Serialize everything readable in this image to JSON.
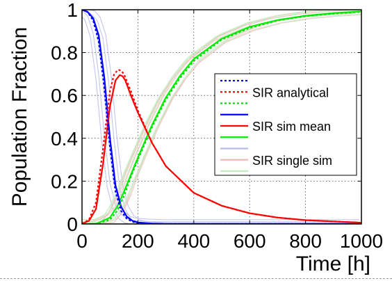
{
  "chart_data": {
    "type": "line",
    "xlabel": "Time [h]",
    "ylabel": "Population Fraction",
    "xlim": [
      0,
      1000
    ],
    "ylim": [
      0,
      1
    ],
    "xticks": [
      0,
      200,
      400,
      600,
      800,
      1000
    ],
    "xtick_labels": [
      "0",
      "200",
      "400",
      "600",
      "800",
      "1000"
    ],
    "yticks": [
      0,
      0.2,
      0.4,
      0.6,
      0.8,
      1
    ],
    "ytick_labels": [
      "0",
      "0.2",
      "0.4",
      "0.6",
      "0.8",
      "1"
    ],
    "grid": true,
    "legend_placement": "center-right",
    "legend_entries": [
      {
        "label": "",
        "color": "#0000ff",
        "style": "dotted"
      },
      {
        "label": "SIR analytical",
        "color": "#ff0000",
        "style": "dotted"
      },
      {
        "label": "",
        "color": "#00dd00",
        "style": "dotted"
      },
      {
        "label": "",
        "color": "#0000ff",
        "style": "solid"
      },
      {
        "label": "SIR sim mean",
        "color": "#ff0000",
        "style": "solid"
      },
      {
        "label": "",
        "color": "#00ee00",
        "style": "solid"
      },
      {
        "label": "",
        "color": "#b8bce8",
        "style": "solid"
      },
      {
        "label": "SIR single sim",
        "color": "#f2b6b6",
        "style": "solid"
      },
      {
        "label": "",
        "color": "#bfeebf",
        "style": "solid"
      }
    ],
    "series": [
      {
        "color": "#ff0000",
        "style": "dotted",
        "x": [
          0,
          25,
          50,
          75,
          100,
          115,
          130,
          140,
          150,
          175,
          200,
          250,
          300,
          400,
          500,
          600,
          700,
          800,
          900,
          1000
        ],
        "y": [
          0.001,
          0.02,
          0.1,
          0.35,
          0.62,
          0.7,
          0.72,
          0.715,
          0.7,
          0.62,
          0.53,
          0.38,
          0.27,
          0.145,
          0.085,
          0.05,
          0.03,
          0.018,
          0.012,
          0.006
        ]
      },
      {
        "color": "#ff0000",
        "style": "solid",
        "x": [
          0,
          25,
          50,
          75,
          100,
          120,
          135,
          145,
          155,
          175,
          200,
          250,
          300,
          400,
          500,
          600,
          700,
          800,
          900,
          1000
        ],
        "y": [
          0.001,
          0.015,
          0.07,
          0.28,
          0.55,
          0.67,
          0.695,
          0.69,
          0.67,
          0.6,
          0.52,
          0.38,
          0.27,
          0.145,
          0.085,
          0.05,
          0.03,
          0.018,
          0.012,
          0.006
        ]
      },
      {
        "color": "#0000ff",
        "style": "dotted",
        "x": [
          0,
          20,
          40,
          60,
          80,
          100,
          120,
          140,
          160,
          180,
          200,
          250,
          300,
          1000
        ],
        "y": [
          1.0,
          0.99,
          0.95,
          0.85,
          0.63,
          0.36,
          0.15,
          0.06,
          0.025,
          0.01,
          0.005,
          0.001,
          0.0,
          0.0
        ]
      },
      {
        "color": "#0000ff",
        "style": "solid",
        "x": [
          0,
          20,
          40,
          60,
          80,
          100,
          120,
          140,
          160,
          180,
          200,
          250,
          300,
          1000
        ],
        "y": [
          1.0,
          0.99,
          0.96,
          0.88,
          0.68,
          0.4,
          0.18,
          0.08,
          0.035,
          0.015,
          0.007,
          0.002,
          0.0,
          0.0
        ]
      },
      {
        "color": "#00dd00",
        "style": "dotted",
        "x": [
          0,
          50,
          100,
          125,
          150,
          175,
          200,
          250,
          300,
          350,
          400,
          500,
          600,
          700,
          800,
          900,
          1000
        ],
        "y": [
          0.0,
          0.0,
          0.02,
          0.06,
          0.13,
          0.22,
          0.3,
          0.45,
          0.58,
          0.68,
          0.76,
          0.86,
          0.915,
          0.95,
          0.97,
          0.982,
          0.99
        ]
      },
      {
        "color": "#00ee00",
        "style": "solid",
        "x": [
          0,
          50,
          100,
          125,
          150,
          175,
          200,
          250,
          300,
          350,
          400,
          500,
          600,
          700,
          800,
          900,
          1000
        ],
        "y": [
          0.0,
          0.0,
          0.03,
          0.08,
          0.15,
          0.23,
          0.31,
          0.46,
          0.59,
          0.69,
          0.77,
          0.865,
          0.92,
          0.952,
          0.972,
          0.984,
          0.992
        ]
      }
    ]
  }
}
